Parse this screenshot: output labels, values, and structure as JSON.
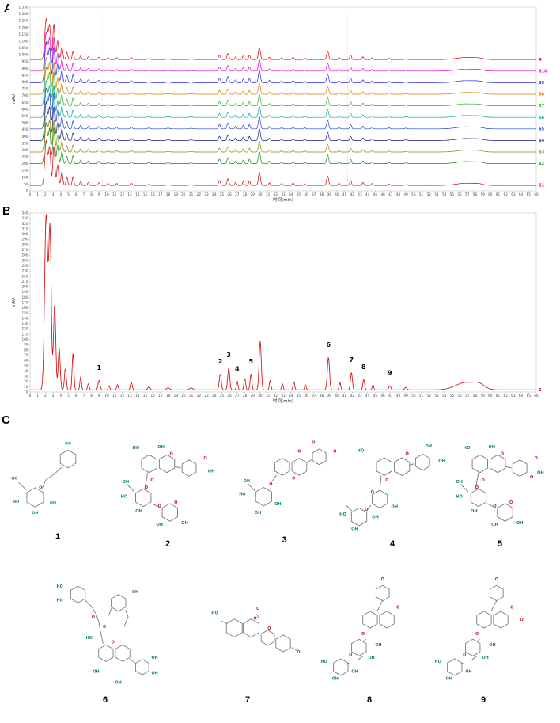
{
  "figure": {
    "panels": {
      "a": {
        "label": "A"
      },
      "b": {
        "label": "B"
      },
      "c": {
        "label": "C"
      }
    }
  },
  "chart_data": [
    {
      "id": "panel-a",
      "type": "line",
      "xlabel": "时间[min]",
      "ylabel": "mAU",
      "xlim": [
        0,
        66
      ],
      "x_tick_step": 1,
      "ylim": [
        0,
        1350
      ],
      "y_tick_step": 50,
      "grid": false,
      "legend_position": "right",
      "marker_lines_x": [
        9.4,
        41.4
      ],
      "solvent_amplitude": 300,
      "traces": [
        {
          "name": "R",
          "color": "#e10000",
          "baseline": 965,
          "scale": 1.0
        },
        {
          "name": "S10",
          "color": "#e100d8",
          "baseline": 880,
          "scale": 0.95
        },
        {
          "name": "S9",
          "color": "#2a2ae1",
          "baseline": 795,
          "scale": 1.0
        },
        {
          "name": "S8",
          "color": "#e07800",
          "baseline": 710,
          "scale": 0.9
        },
        {
          "name": "S7",
          "color": "#27b427",
          "baseline": 625,
          "scale": 0.95
        },
        {
          "name": "S6",
          "color": "#00a2a2",
          "baseline": 540,
          "scale": 0.9
        },
        {
          "name": "S5",
          "color": "#2041c8",
          "baseline": 455,
          "scale": 1.0
        },
        {
          "name": "S4",
          "color": "#1a1a6e",
          "baseline": 370,
          "scale": 0.95
        },
        {
          "name": "S3",
          "color": "#8a8a00",
          "baseline": 285,
          "scale": 0.9
        },
        {
          "name": "S2",
          "color": "#128a12",
          "baseline": 200,
          "scale": 1.0
        },
        {
          "name": "S1",
          "color": "#d40000",
          "baseline": 40,
          "scale": 1.1
        }
      ],
      "base_peaks": [
        [
          2.1,
          1.0,
          0.18
        ],
        [
          2.55,
          0.82,
          0.14
        ],
        [
          3.1,
          0.88,
          0.13
        ],
        [
          3.6,
          0.46,
          0.12
        ],
        [
          4.15,
          0.3,
          0.12
        ],
        [
          4.8,
          0.18,
          0.11
        ],
        [
          5.6,
          0.2,
          0.1
        ],
        [
          6.6,
          0.09,
          0.1
        ],
        [
          7.6,
          0.07,
          0.1
        ],
        [
          9.0,
          0.06,
          0.12
        ],
        [
          10.2,
          0.045,
          0.1
        ],
        [
          11.3,
          0.045,
          0.1
        ],
        [
          13.2,
          0.05,
          0.12
        ],
        [
          15.5,
          0.025,
          0.15
        ],
        [
          18.0,
          0.018,
          0.2
        ],
        [
          21.0,
          0.015,
          0.2
        ],
        [
          24.7,
          0.11,
          0.12
        ],
        [
          25.8,
          0.15,
          0.12
        ],
        [
          26.8,
          0.07,
          0.1
        ],
        [
          27.8,
          0.09,
          0.1
        ],
        [
          28.6,
          0.11,
          0.1
        ],
        [
          29.9,
          0.3,
          0.13
        ],
        [
          31.2,
          0.06,
          0.1
        ],
        [
          32.8,
          0.045,
          0.1
        ],
        [
          34.3,
          0.055,
          0.1
        ],
        [
          35.8,
          0.035,
          0.1
        ],
        [
          38.8,
          0.21,
          0.13
        ],
        [
          40.3,
          0.05,
          0.1
        ],
        [
          41.8,
          0.11,
          0.11
        ],
        [
          43.4,
          0.07,
          0.1
        ],
        [
          44.6,
          0.045,
          0.1
        ],
        [
          46.8,
          0.03,
          0.12
        ],
        [
          49.0,
          0.018,
          0.15
        ],
        [
          56.8,
          0.05,
          1.2
        ],
        [
          58.5,
          0.025,
          0.6
        ]
      ]
    },
    {
      "id": "panel-b",
      "type": "line",
      "trace_name": "S",
      "color": "#d40000",
      "xlabel": "时间[min]",
      "ylabel": "mAU",
      "xlim": [
        0,
        66
      ],
      "x_tick_step": 1,
      "ylim": [
        0,
        340
      ],
      "y_tick_step": 10,
      "grid": false,
      "baseline": 4,
      "peaks": [
        [
          2.1,
          335,
          0.2
        ],
        [
          2.6,
          300,
          0.16
        ],
        [
          3.2,
          160,
          0.15
        ],
        [
          3.8,
          80,
          0.13
        ],
        [
          4.6,
          40,
          0.12
        ],
        [
          5.6,
          70,
          0.11
        ],
        [
          6.6,
          25,
          0.1
        ],
        [
          7.6,
          12,
          0.1
        ],
        [
          9.0,
          18,
          0.13
        ],
        [
          10.3,
          8,
          0.1
        ],
        [
          11.4,
          10,
          0.1
        ],
        [
          13.2,
          14,
          0.12
        ],
        [
          15.5,
          6,
          0.15
        ],
        [
          18.0,
          4,
          0.2
        ],
        [
          21.0,
          4,
          0.2
        ],
        [
          24.8,
          30,
          0.13
        ],
        [
          25.9,
          42,
          0.13
        ],
        [
          27.0,
          16,
          0.1
        ],
        [
          28.0,
          22,
          0.11
        ],
        [
          28.8,
          30,
          0.11
        ],
        [
          30.0,
          92,
          0.14
        ],
        [
          31.3,
          18,
          0.1
        ],
        [
          32.9,
          12,
          0.1
        ],
        [
          34.4,
          16,
          0.1
        ],
        [
          35.9,
          10,
          0.1
        ],
        [
          38.9,
          62,
          0.14
        ],
        [
          40.4,
          14,
          0.1
        ],
        [
          41.9,
          33,
          0.12
        ],
        [
          43.5,
          20,
          0.11
        ],
        [
          44.7,
          10,
          0.1
        ],
        [
          46.9,
          8,
          0.13
        ],
        [
          49.0,
          5,
          0.15
        ],
        [
          56.8,
          14,
          1.3
        ],
        [
          58.6,
          8,
          0.7
        ]
      ],
      "peak_labels": [
        {
          "label": "1",
          "x": 9.0
        },
        {
          "label": "2",
          "x": 24.8
        },
        {
          "label": "3",
          "x": 25.9
        },
        {
          "label": "4",
          "x": 27.0
        },
        {
          "label": "5",
          "x": 28.8
        },
        {
          "label": "6",
          "x": 38.9
        },
        {
          "label": "7",
          "x": 41.9
        },
        {
          "label": "8",
          "x": 43.5
        },
        {
          "label": "9",
          "x": 46.9
        }
      ]
    }
  ],
  "structures": [
    {
      "label": "1"
    },
    {
      "label": "2"
    },
    {
      "label": "3"
    },
    {
      "label": "4"
    },
    {
      "label": "5"
    },
    {
      "label": "6"
    },
    {
      "label": "7"
    },
    {
      "label": "8"
    },
    {
      "label": "9"
    }
  ]
}
